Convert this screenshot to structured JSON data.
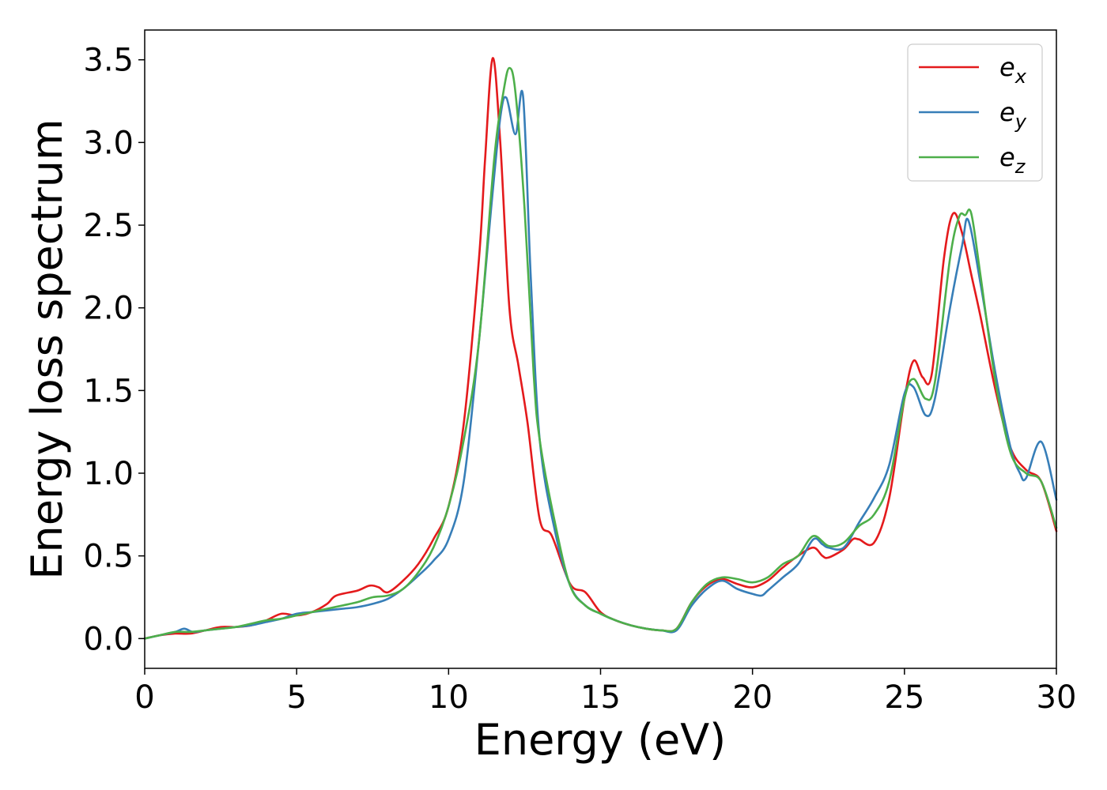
{
  "chart_data": {
    "type": "line",
    "title": "",
    "xlabel": "Energy (eV)",
    "ylabel": "Energy loss spectrum",
    "xlim": [
      0,
      30
    ],
    "ylim": [
      -0.18,
      3.68
    ],
    "xticks": [
      0,
      5,
      10,
      15,
      20,
      25,
      30
    ],
    "xtick_labels": [
      "0",
      "5",
      "10",
      "15",
      "20",
      "25",
      "30"
    ],
    "yticks": [
      0.0,
      0.5,
      1.0,
      1.5,
      2.0,
      2.5,
      3.0,
      3.5
    ],
    "ytick_labels": [
      "0.0",
      "0.5",
      "1.0",
      "1.5",
      "2.0",
      "2.5",
      "3.0",
      "3.5"
    ],
    "grid": false,
    "legend_position": "top-right",
    "series": [
      {
        "name": "e_x",
        "label_base": "e",
        "label_sub": "x",
        "color": "#e41a1c",
        "x": [
          0,
          0.5,
          1,
          1.5,
          2,
          2.5,
          3,
          3.5,
          4,
          4.5,
          5,
          5.5,
          6,
          6.3,
          7,
          7.4,
          7.7,
          8,
          8.5,
          9,
          9.5,
          10,
          10.5,
          11,
          11.2,
          11.45,
          11.7,
          12,
          12.3,
          12.6,
          13,
          13.4,
          14,
          14.5,
          15,
          15.5,
          16,
          16.5,
          17,
          17.5,
          18,
          18.5,
          19,
          19.5,
          20,
          20.5,
          21,
          21.5,
          22,
          22.3,
          22.5,
          23,
          23.3,
          23.5,
          24,
          24.5,
          25,
          25.3,
          25.6,
          25.9,
          26.3,
          26.6,
          26.9,
          27.2,
          27.5,
          28,
          28.5,
          29,
          29.5,
          30
        ],
        "y": [
          0.0,
          0.02,
          0.03,
          0.03,
          0.05,
          0.07,
          0.07,
          0.08,
          0.11,
          0.15,
          0.14,
          0.16,
          0.21,
          0.26,
          0.29,
          0.32,
          0.31,
          0.28,
          0.35,
          0.45,
          0.6,
          0.8,
          1.3,
          2.3,
          2.9,
          3.51,
          3.0,
          2.0,
          1.65,
          1.3,
          0.72,
          0.62,
          0.33,
          0.28,
          0.16,
          0.11,
          0.08,
          0.06,
          0.05,
          0.06,
          0.22,
          0.32,
          0.36,
          0.33,
          0.31,
          0.35,
          0.43,
          0.5,
          0.55,
          0.5,
          0.49,
          0.54,
          0.6,
          0.6,
          0.58,
          0.85,
          1.45,
          1.68,
          1.58,
          1.6,
          2.3,
          2.57,
          2.45,
          2.2,
          1.95,
          1.5,
          1.15,
          1.02,
          0.95,
          0.65
        ]
      },
      {
        "name": "e_y",
        "label_base": "e",
        "label_sub": "y",
        "color": "#377eb8",
        "x": [
          0,
          0.5,
          1,
          1.3,
          1.6,
          2,
          2.5,
          3,
          3.5,
          4,
          4.5,
          5,
          5.5,
          6,
          6.5,
          7,
          7.5,
          8,
          8.5,
          9,
          9.5,
          10,
          10.5,
          11,
          11.4,
          11.7,
          11.9,
          12.2,
          12.45,
          12.7,
          13,
          13.5,
          14,
          14.5,
          15,
          15.5,
          16,
          16.5,
          17,
          17.5,
          18,
          18.5,
          19,
          19.5,
          20,
          20.3,
          20.5,
          21,
          21.5,
          22,
          22.3,
          22.5,
          23,
          23.5,
          24,
          24.5,
          25,
          25.3,
          25.7,
          26,
          26.5,
          26.9,
          27.1,
          27.5,
          28,
          28.5,
          28.8,
          29,
          29.5,
          30
        ],
        "y": [
          0.0,
          0.02,
          0.04,
          0.06,
          0.04,
          0.05,
          0.06,
          0.07,
          0.08,
          0.1,
          0.12,
          0.15,
          0.16,
          0.17,
          0.18,
          0.19,
          0.21,
          0.24,
          0.3,
          0.38,
          0.47,
          0.6,
          0.95,
          1.8,
          2.6,
          3.15,
          3.27,
          3.05,
          3.28,
          2.2,
          1.2,
          0.65,
          0.32,
          0.2,
          0.15,
          0.11,
          0.08,
          0.06,
          0.05,
          0.05,
          0.2,
          0.3,
          0.35,
          0.3,
          0.27,
          0.26,
          0.29,
          0.37,
          0.45,
          0.6,
          0.57,
          0.55,
          0.55,
          0.7,
          0.85,
          1.05,
          1.48,
          1.52,
          1.35,
          1.45,
          2.0,
          2.38,
          2.53,
          2.15,
          1.6,
          1.15,
          1.0,
          0.97,
          1.19,
          0.84
        ]
      },
      {
        "name": "e_z",
        "label_base": "e",
        "label_sub": "z",
        "color": "#4daf4a",
        "x": [
          0,
          0.5,
          1,
          1.5,
          2,
          2.5,
          3,
          3.5,
          4,
          4.5,
          5,
          5.5,
          6,
          6.5,
          7,
          7.5,
          8,
          8.5,
          9,
          9.5,
          10,
          10.5,
          11,
          11.5,
          11.8,
          12,
          12.2,
          12.5,
          12.8,
          13,
          13.5,
          14,
          14.5,
          15,
          15.5,
          16,
          16.5,
          17,
          17.5,
          18,
          18.5,
          19,
          19.5,
          20,
          20.5,
          21,
          21.5,
          22,
          22.5,
          23,
          23.5,
          24,
          24.5,
          25,
          25.3,
          25.7,
          26,
          26.5,
          26.8,
          27,
          27.2,
          27.5,
          28,
          28.5,
          29,
          29.5,
          30
        ],
        "y": [
          0.0,
          0.02,
          0.04,
          0.04,
          0.05,
          0.06,
          0.07,
          0.09,
          0.11,
          0.12,
          0.14,
          0.16,
          0.18,
          0.2,
          0.22,
          0.25,
          0.26,
          0.3,
          0.4,
          0.55,
          0.8,
          1.2,
          1.8,
          2.9,
          3.3,
          3.45,
          3.3,
          2.6,
          1.6,
          1.2,
          0.7,
          0.32,
          0.2,
          0.15,
          0.11,
          0.08,
          0.06,
          0.05,
          0.06,
          0.22,
          0.33,
          0.37,
          0.36,
          0.34,
          0.37,
          0.45,
          0.5,
          0.62,
          0.56,
          0.58,
          0.68,
          0.75,
          0.95,
          1.45,
          1.57,
          1.45,
          1.55,
          2.3,
          2.55,
          2.56,
          2.57,
          2.2,
          1.55,
          1.12,
          1.0,
          0.95,
          0.67
        ]
      }
    ]
  }
}
